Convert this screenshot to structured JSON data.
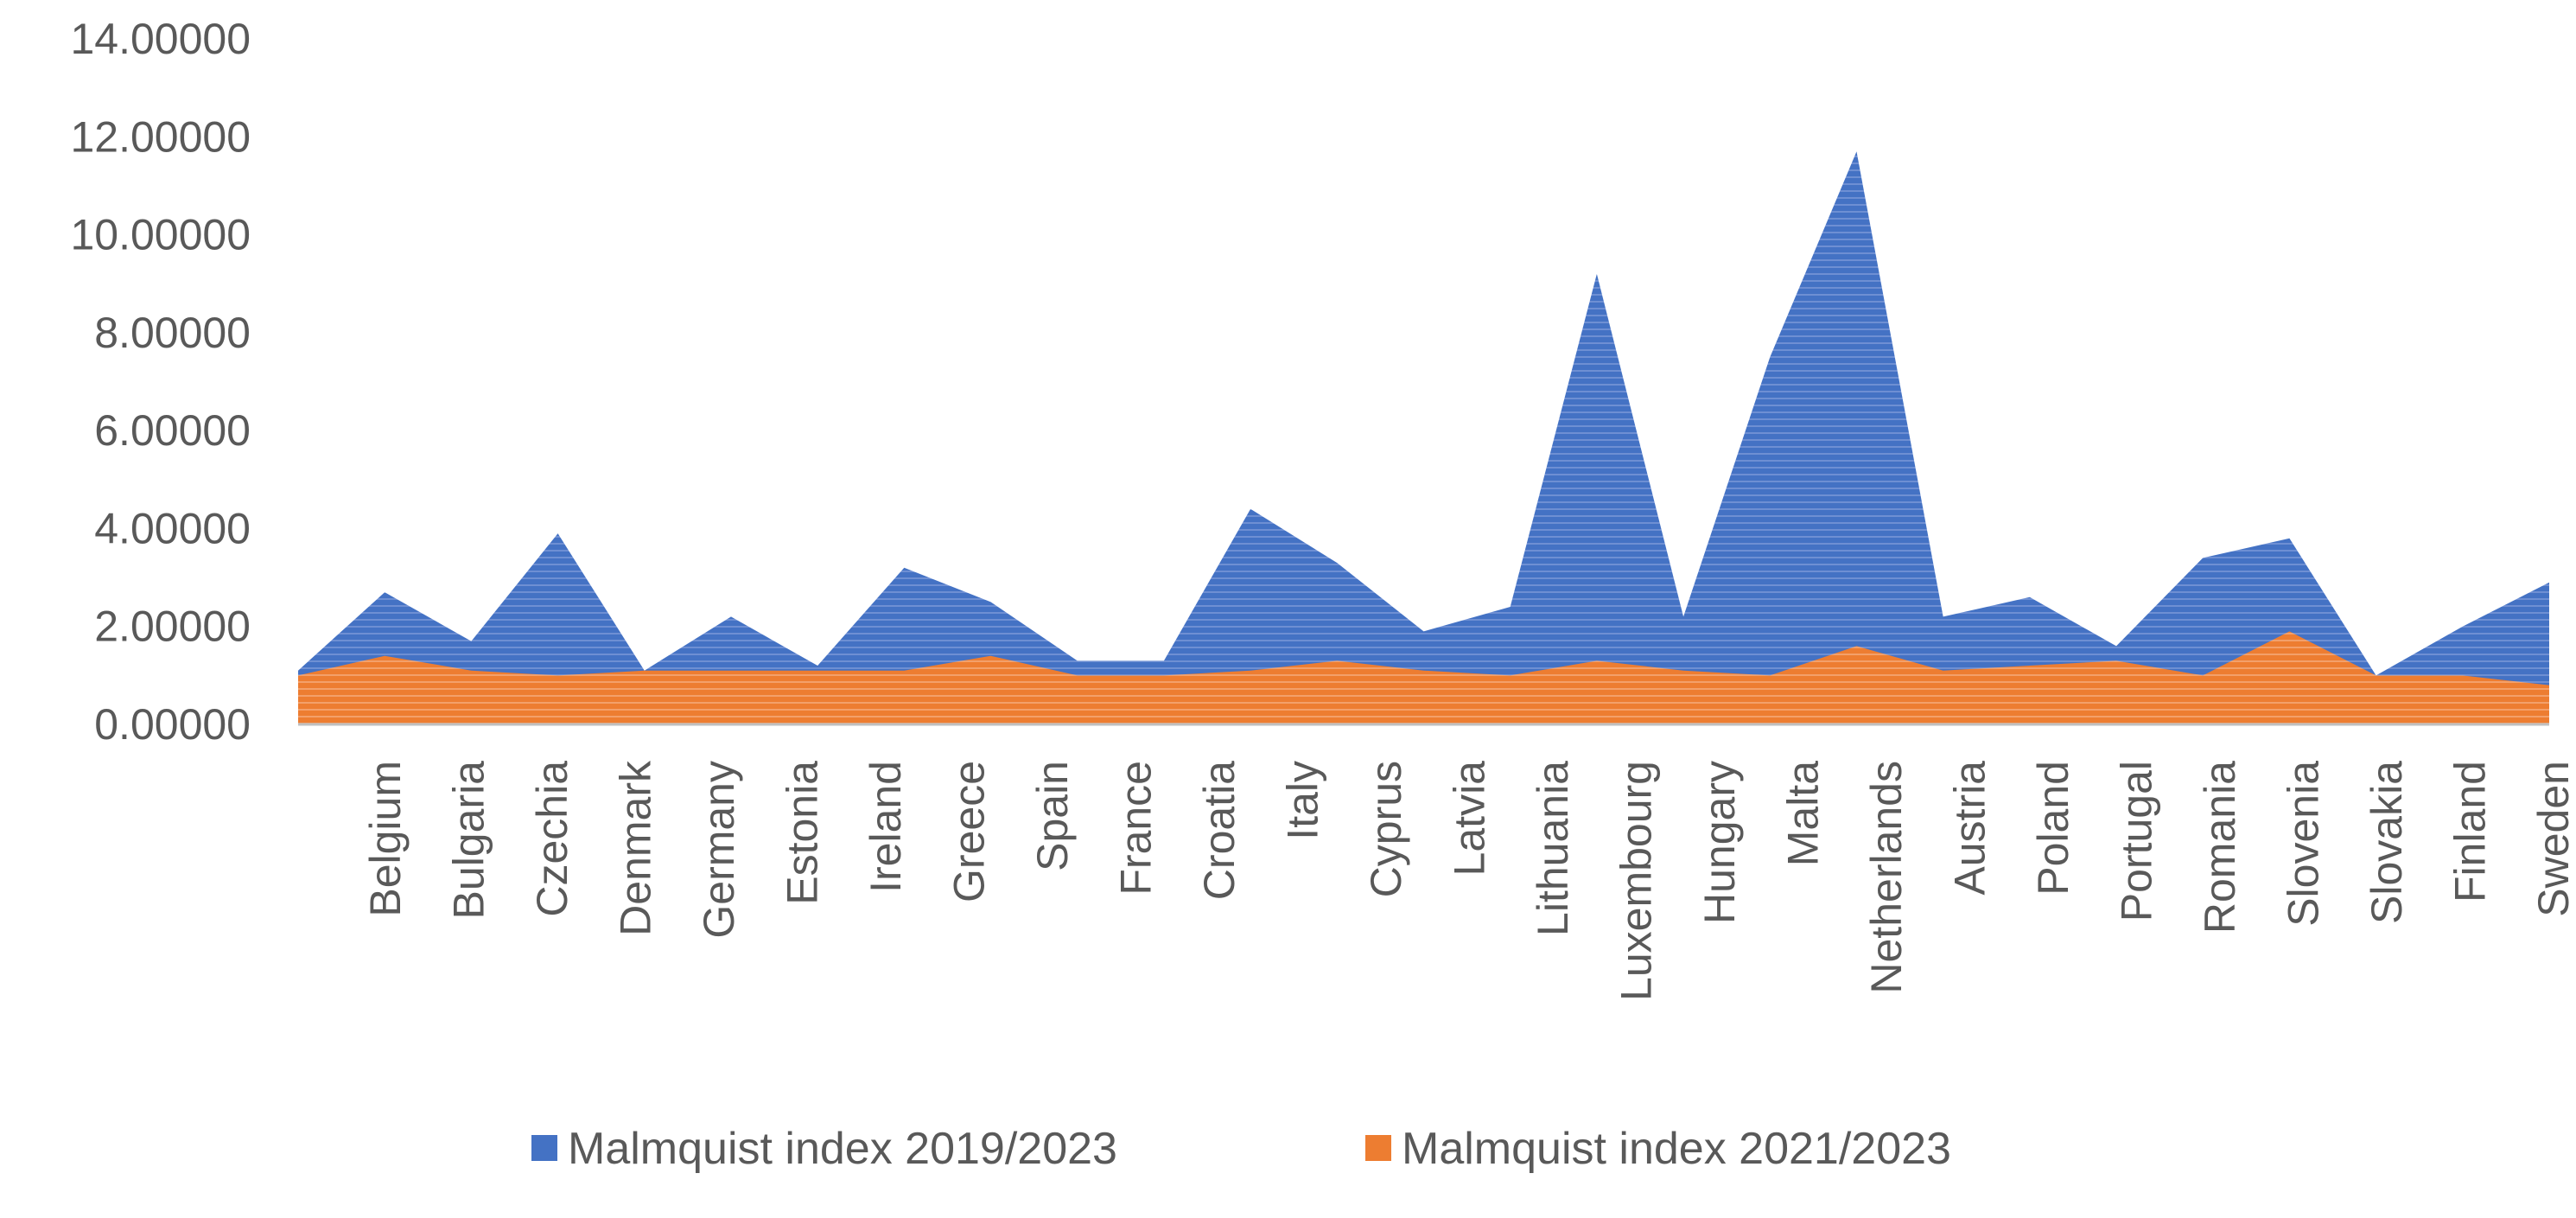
{
  "chart_data": {
    "type": "area",
    "title": "",
    "xlabel": "",
    "ylabel": "",
    "ylim": [
      0,
      14
    ],
    "yticks": [
      "0.00000",
      "2.00000",
      "4.00000",
      "6.00000",
      "8.00000",
      "10.00000",
      "12.00000",
      "14.00000"
    ],
    "grid": false,
    "legend_position": "bottom",
    "categories": [
      "Belgium",
      "Bulgaria",
      "Czechia",
      "Denmark",
      "Germany",
      "Estonia",
      "Ireland",
      "Greece",
      "Spain",
      "France",
      "Croatia",
      "Italy",
      "Cyprus",
      "Latvia",
      "Lithuania",
      "Luxembourg",
      "Hungary",
      "Malta",
      "Netherlands",
      "Austria",
      "Poland",
      "Portugal",
      "Romania",
      "Slovenia",
      "Slovakia",
      "Finland",
      "Sweden"
    ],
    "series": [
      {
        "name": "Malmquist index 2019/2023",
        "color": "#4472C4",
        "values": [
          1.1,
          2.7,
          1.7,
          3.9,
          1.1,
          2.2,
          1.2,
          3.2,
          2.5,
          1.3,
          1.3,
          4.4,
          3.3,
          1.9,
          2.4,
          9.2,
          2.2,
          7.5,
          11.7,
          2.2,
          2.6,
          1.6,
          3.4,
          3.8,
          1.0,
          2.0,
          2.9
        ]
      },
      {
        "name": "Malmquist index 2021/2023",
        "color": "#ED7D31",
        "values": [
          1.0,
          1.4,
          1.1,
          1.0,
          1.1,
          1.1,
          1.1,
          1.1,
          1.4,
          1.0,
          1.0,
          1.1,
          1.3,
          1.1,
          1.0,
          1.3,
          1.1,
          1.0,
          1.6,
          1.1,
          1.2,
          1.3,
          1.0,
          1.9,
          1.0,
          1.0,
          0.8
        ]
      }
    ]
  }
}
